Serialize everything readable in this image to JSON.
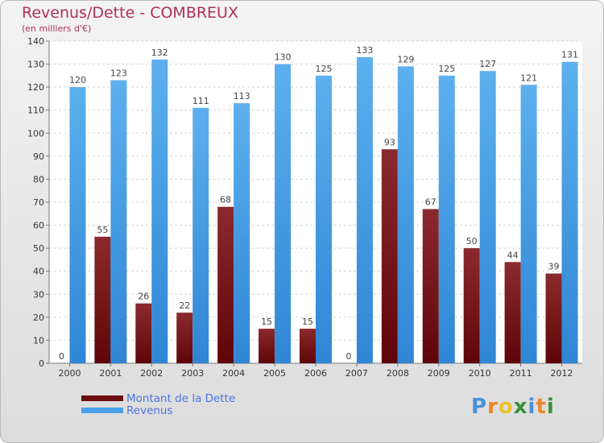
{
  "header": {
    "title": "Revenus/Dette - COMBREUX",
    "subtitle": "(en milliers d'€)"
  },
  "chart_data": {
    "type": "bar",
    "title": "Revenus/Dette - COMBREUX",
    "ylabel": "(en milliers d'€)",
    "xlabel": "",
    "categories": [
      "2000",
      "2001",
      "2002",
      "2003",
      "2004",
      "2005",
      "2006",
      "2007",
      "2008",
      "2009",
      "2010",
      "2011",
      "2012"
    ],
    "series": [
      {
        "name": "Montant de la Dette",
        "color": "#7a1a1e",
        "values": [
          0,
          55,
          26,
          22,
          68,
          15,
          15,
          0,
          93,
          67,
          50,
          44,
          39
        ]
      },
      {
        "name": "Revenus",
        "color": "#55a6e8",
        "values": [
          120,
          123,
          132,
          111,
          113,
          130,
          125,
          133,
          129,
          125,
          127,
          121,
          131
        ]
      }
    ],
    "ylim": [
      0,
      140
    ],
    "yticks": [
      0,
      10,
      20,
      30,
      40,
      50,
      60,
      70,
      80,
      90,
      100,
      110,
      120,
      130,
      140
    ],
    "grid": true,
    "legend": "bottom-left"
  },
  "legend": {
    "items": [
      {
        "label": "Montant de la Dette",
        "color": "#6b0e10"
      },
      {
        "label": "Revenus",
        "color": "#4aa0e8"
      }
    ]
  },
  "logo": {
    "letters": [
      "P",
      "r",
      "o",
      "x",
      "i",
      "t",
      "i"
    ],
    "colors": [
      "#4a90d9",
      "#e8872a",
      "#e8c32a",
      "#3a8f3a",
      "#4a90d9",
      "#e8872a",
      "#3a8f3a"
    ]
  }
}
